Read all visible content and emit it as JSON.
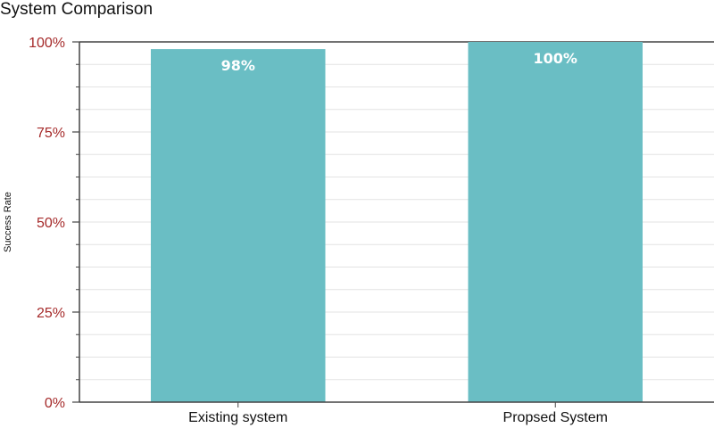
{
  "chart_data": {
    "type": "bar",
    "title": "System Comparison",
    "ylabel": "Success Rate",
    "xlabel": "",
    "categories": [
      "Existing system",
      "Propsed System"
    ],
    "values": [
      98,
      100
    ],
    "value_labels": [
      "98%",
      "100%"
    ],
    "ylim": [
      0,
      100
    ],
    "yticks": [
      0,
      25,
      50,
      75,
      100
    ],
    "ytick_labels": [
      "0%",
      "25%",
      "50%",
      "75%",
      "100%"
    ],
    "grid": true,
    "legend": "none",
    "colors": {
      "bar": "#6abec4",
      "tick_label": "#a52a2a",
      "grid": "#e3e3e3",
      "axis": "#444444"
    }
  }
}
